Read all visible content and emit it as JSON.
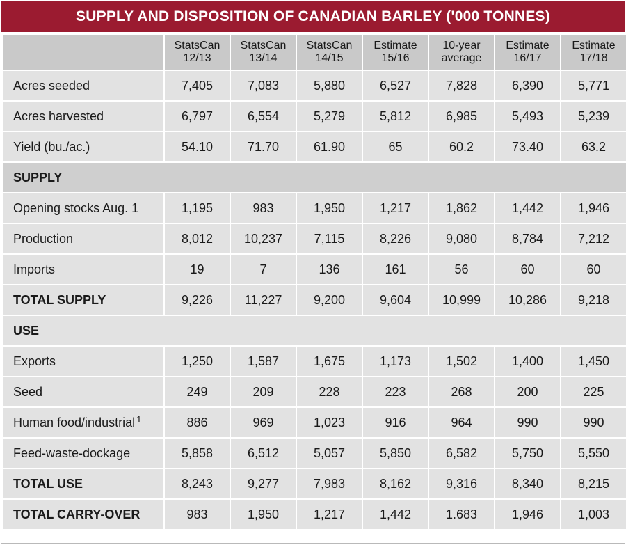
{
  "title": "SUPPLY AND DISPOSITION OF CANADIAN BARLEY ('000 TONNES)",
  "columns": [
    {
      "line1": "StatsCan",
      "line2": "12/13"
    },
    {
      "line1": "StatsCan",
      "line2": "13/14"
    },
    {
      "line1": "StatsCan",
      "line2": "14/15"
    },
    {
      "line1": "Estimate",
      "line2": "15/16"
    },
    {
      "line1": "10-year",
      "line2": "average"
    },
    {
      "line1": "Estimate",
      "line2": "16/17"
    },
    {
      "line1": "Estimate",
      "line2": "17/18"
    }
  ],
  "rows": {
    "acres_seeded": {
      "label": "Acres seeded",
      "values": [
        "7,405",
        "7,083",
        "5,880",
        "6,527",
        "7,828",
        "6,390",
        "5,771"
      ]
    },
    "acres_harvested": {
      "label": "Acres harvested",
      "values": [
        "6,797",
        "6,554",
        "5,279",
        "5,812",
        "6,985",
        "5,493",
        "5,239"
      ]
    },
    "yield": {
      "label": "Yield (bu./ac.)",
      "values": [
        "54.10",
        "71.70",
        "61.90",
        "65",
        "60.2",
        "73.40",
        "63.2"
      ]
    },
    "supply_header": {
      "label": "SUPPLY"
    },
    "opening_stocks": {
      "label": "Opening stocks Aug. 1",
      "values": [
        "1,195",
        "983",
        "1,950",
        "1,217",
        "1,862",
        "1,442",
        "1,946"
      ]
    },
    "production": {
      "label": "Production",
      "values": [
        "8,012",
        "10,237",
        "7,115",
        "8,226",
        "9,080",
        "8,784",
        "7,212"
      ]
    },
    "imports": {
      "label": "Imports",
      "values": [
        "19",
        "7",
        "136",
        "161",
        "56",
        "60",
        "60"
      ]
    },
    "total_supply": {
      "label": "TOTAL SUPPLY",
      "values": [
        "9,226",
        "11,227",
        "9,200",
        "9,604",
        "10,999",
        "10,286",
        "9,218"
      ]
    },
    "use_header": {
      "label": "USE"
    },
    "exports": {
      "label": "Exports",
      "values": [
        "1,250",
        "1,587",
        "1,675",
        "1,173",
        "1,502",
        "1,400",
        "1,450"
      ]
    },
    "seed": {
      "label": "Seed",
      "values": [
        "249",
        "209",
        "228",
        "223",
        "268",
        "200",
        "225"
      ]
    },
    "human_food": {
      "label": "Human food/industrial",
      "footnote": "1",
      "values": [
        "886",
        "969",
        "1,023",
        "916",
        "964",
        "990",
        "990"
      ]
    },
    "feed_waste": {
      "label": "Feed-waste-dockage",
      "values": [
        "5,858",
        "6,512",
        "5,057",
        "5,850",
        "6,582",
        "5,750",
        "5,550"
      ]
    },
    "total_use": {
      "label": "TOTAL USE",
      "values": [
        "8,243",
        "9,277",
        "7,983",
        "8,162",
        "9,316",
        "8,340",
        "8,215"
      ]
    },
    "total_carryover": {
      "label": "TOTAL CARRY-OVER",
      "values": [
        "983",
        "1,950",
        "1,217",
        "1,442",
        "1.683",
        "1,946",
        "1,003"
      ]
    }
  }
}
